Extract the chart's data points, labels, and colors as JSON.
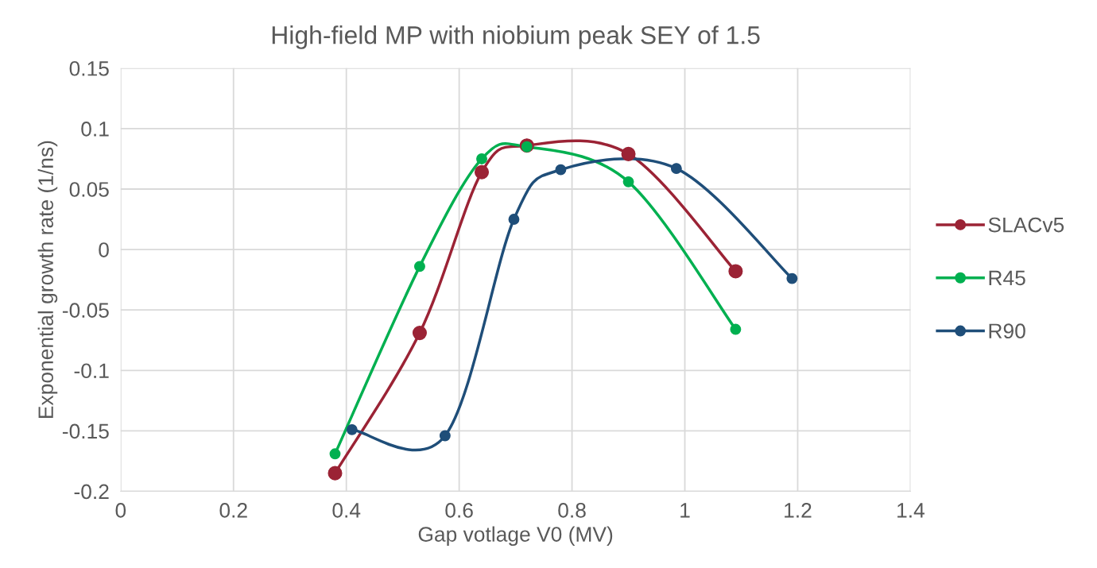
{
  "chart_data": {
    "type": "line",
    "title": "High-field MP with niobium peak SEY of 1.5",
    "xlabel": "Gap votlage V0 (MV)",
    "ylabel": "Exponential growth rate (1/ns)",
    "series": [
      {
        "name": "SLACv5",
        "color": "#9b2335",
        "x": [
          0.38,
          0.53,
          0.64,
          0.72,
          0.9,
          1.09
        ],
        "values": [
          -0.185,
          -0.069,
          0.064,
          0.086,
          0.079,
          -0.018
        ]
      },
      {
        "name": "R45",
        "color": "#00b050",
        "x": [
          0.38,
          0.53,
          0.64,
          0.72,
          0.9,
          1.09
        ],
        "values": [
          -0.169,
          -0.014,
          0.075,
          0.085,
          0.056,
          -0.066
        ]
      },
      {
        "name": "R90",
        "color": "#1f4e79",
        "x": [
          0.41,
          0.575,
          0.697,
          0.78,
          0.985,
          1.19
        ],
        "values": [
          -0.149,
          -0.154,
          0.025,
          0.066,
          0.067,
          -0.024
        ]
      }
    ],
    "xlim": [
      0,
      1.4
    ],
    "xticks": [
      0,
      0.2,
      0.4,
      0.6,
      0.8,
      1,
      1.2,
      1.4
    ],
    "ylim": [
      -0.2,
      0.15
    ],
    "yticks": [
      -0.2,
      -0.15,
      -0.1,
      -0.05,
      0,
      0.05,
      0.1,
      0.15
    ],
    "grid": true,
    "legend": "right",
    "marker": "circle",
    "line_style": "solid"
  }
}
